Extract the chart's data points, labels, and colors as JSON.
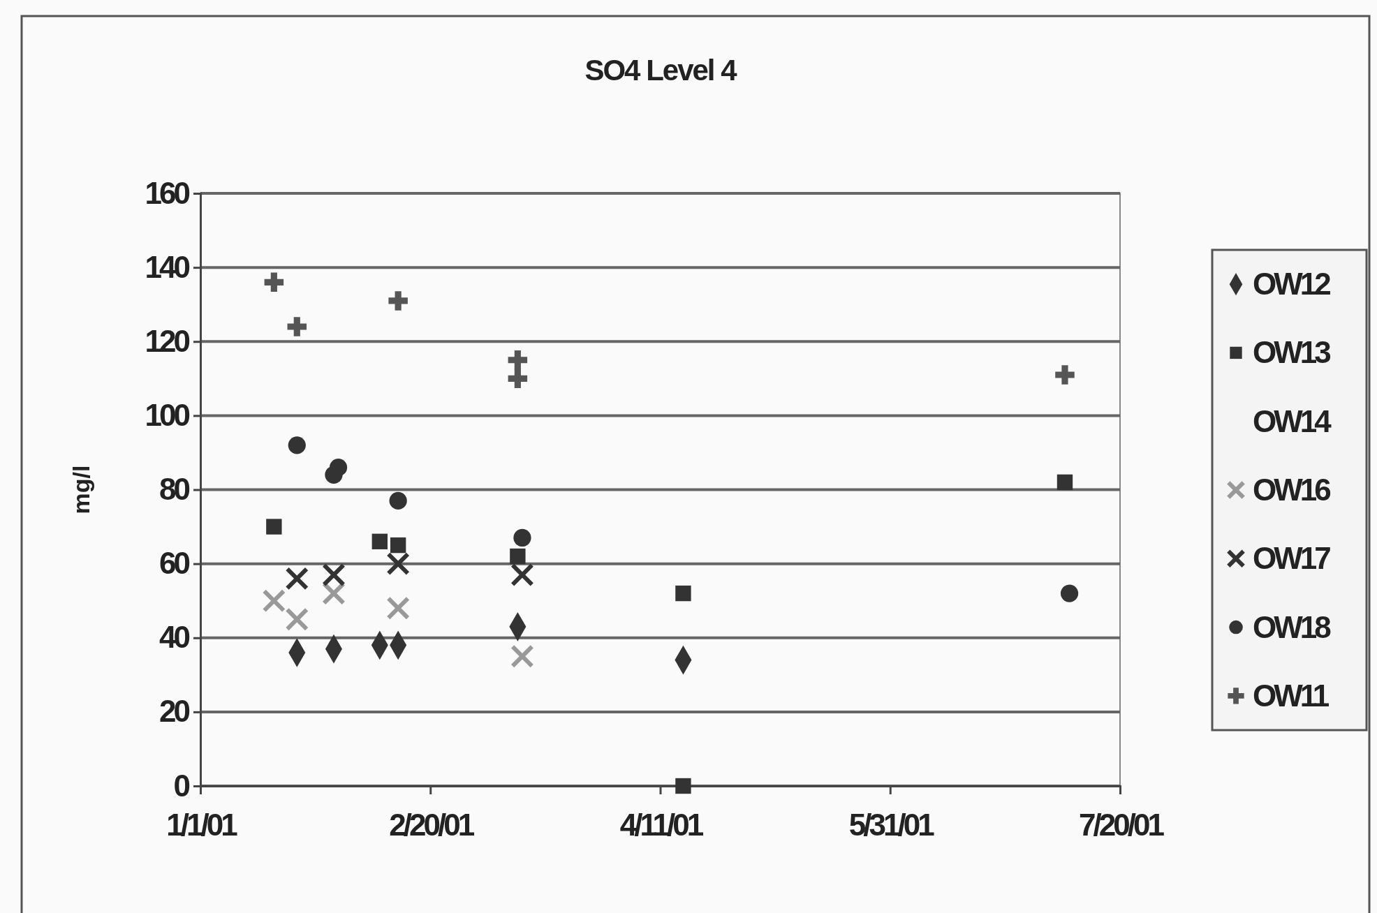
{
  "chart_data": {
    "type": "scatter",
    "title": "SO4 Level 4",
    "ylabel": "mg/l",
    "xlim": [
      "2001-01-01",
      "2001-07-20"
    ],
    "xticks": [
      {
        "value": "2001-01-01",
        "label": "1/1/01"
      },
      {
        "value": "2001-02-20",
        "label": "2/20/01"
      },
      {
        "value": "2001-04-11",
        "label": "4/11/01"
      },
      {
        "value": "2001-05-31",
        "label": "5/31/01"
      },
      {
        "value": "2001-07-20",
        "label": "7/20/01"
      }
    ],
    "ylim": [
      0,
      160
    ],
    "yticks": [
      0,
      20,
      40,
      60,
      80,
      100,
      120,
      140,
      160
    ],
    "grid": "y",
    "legend": "right",
    "series": [
      {
        "name": "OW12",
        "color": "#333333",
        "marker": "diamond",
        "x": [
          "2001-01-22",
          "2001-01-30",
          "2001-02-09",
          "2001-02-13",
          "2001-03-11",
          "2001-04-16"
        ],
        "values": [
          36,
          37,
          38,
          38,
          43,
          34
        ]
      },
      {
        "name": "OW13",
        "color": "#333333",
        "marker": "square",
        "x": [
          "2001-01-17",
          "2001-01-30",
          "2001-02-09",
          "2001-02-13",
          "2001-03-11",
          "2001-04-16",
          "2001-04-16",
          "2001-07-08"
        ],
        "values": [
          70,
          null,
          66,
          65,
          62,
          52,
          0,
          82
        ]
      },
      {
        "name": "OW14",
        "color": "#333333",
        "marker": "none"
      },
      {
        "name": "OW16",
        "color": "#999999",
        "marker": "x",
        "x": [
          "2001-01-17",
          "2001-01-22",
          "2001-01-30",
          "2001-02-13",
          "2001-03-12"
        ],
        "values": [
          50,
          45,
          52,
          48,
          35
        ]
      },
      {
        "name": "OW17",
        "color": "#333333",
        "marker": "x",
        "x": [
          "2001-01-22",
          "2001-01-30",
          "2001-02-13",
          "2001-03-12"
        ],
        "values": [
          56,
          57,
          60,
          57
        ]
      },
      {
        "name": "OW18",
        "color": "#333333",
        "marker": "circle",
        "x": [
          "2001-01-22",
          "2001-01-30",
          "2001-01-31",
          "2001-02-13",
          "2001-03-12",
          "2001-07-09"
        ],
        "values": [
          92,
          84,
          86,
          77,
          67,
          52
        ]
      },
      {
        "name": "OW11",
        "color": "#555555",
        "marker": "cross",
        "x": [
          "2001-01-17",
          "2001-01-22",
          "2001-02-13",
          "2001-03-11",
          "2001-03-11",
          "2001-07-08"
        ],
        "values": [
          136,
          124,
          131,
          115,
          110,
          111
        ]
      }
    ]
  }
}
